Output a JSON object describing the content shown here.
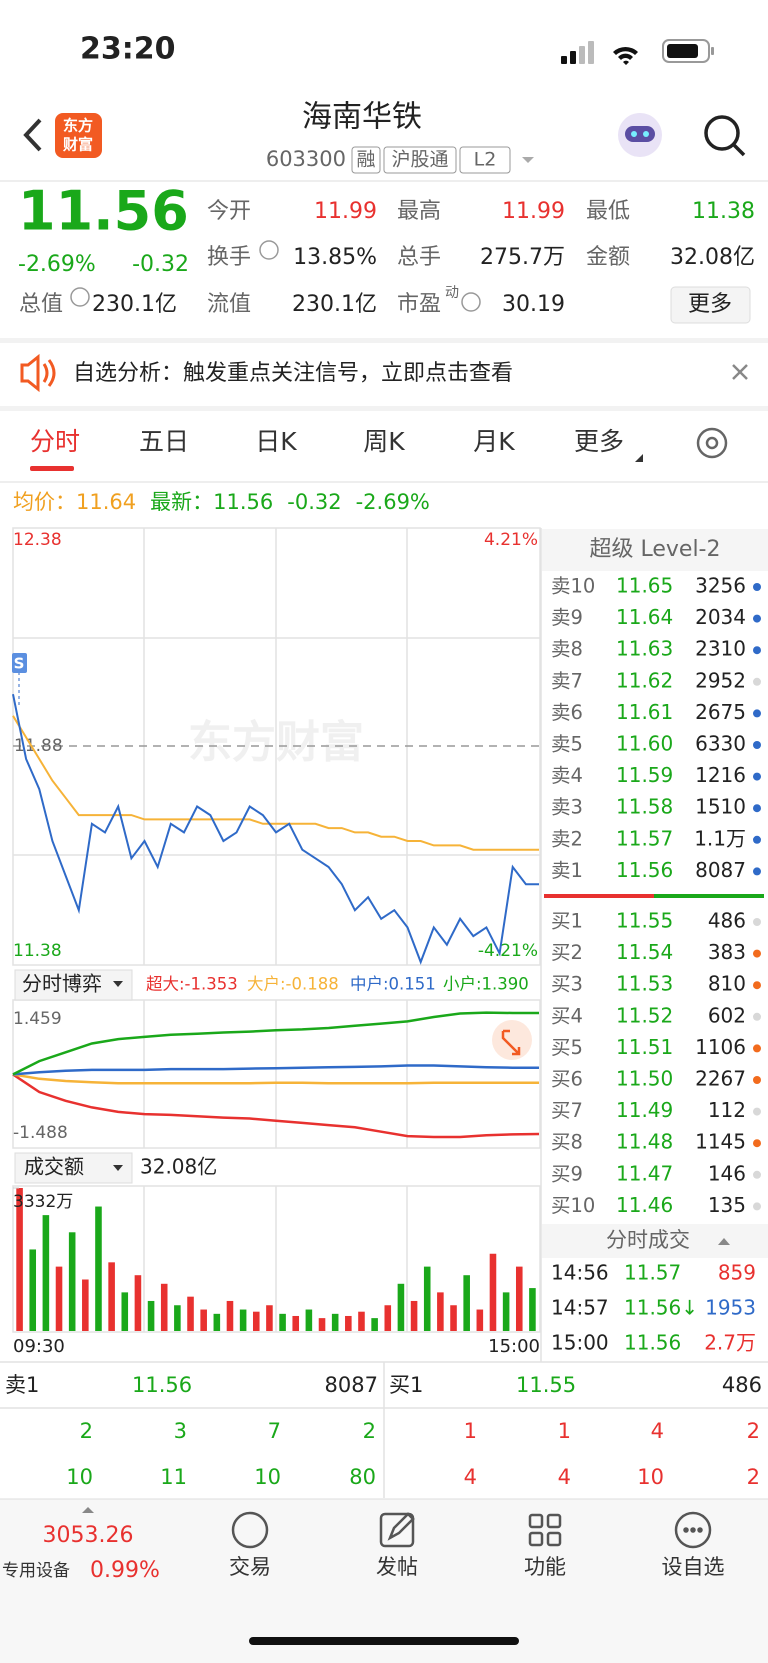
{
  "status_bar": {
    "time": "23:20"
  },
  "header": {
    "logo_lines": [
      "东方",
      "财富"
    ],
    "title": "海南华铁",
    "code": "603300",
    "tags": [
      "融",
      "沪股通",
      "L2"
    ]
  },
  "quote": {
    "price": "11.56",
    "change_pct": "-2.69%",
    "change": "-0.32",
    "stats": [
      {
        "label": "今开",
        "value": "11.99"
      },
      {
        "label": "最高",
        "value": "11.99"
      },
      {
        "label": "最低",
        "value": "11.38"
      },
      {
        "label": "换手",
        "value": "13.85%"
      },
      {
        "label": "总手",
        "value": "275.7万"
      },
      {
        "label": "金额",
        "value": "32.08亿"
      },
      {
        "label": "总值",
        "value": "230.1亿"
      },
      {
        "label": "流值",
        "value": "230.1亿"
      },
      {
        "label": "市盈",
        "label_sup": "动",
        "value": "30.19"
      }
    ],
    "more_button": "更多"
  },
  "banner": {
    "text": "自选分析：触发重点关注信号，立即点击查看"
  },
  "tabs": [
    "分时",
    "五日",
    "日K",
    "周K",
    "月K",
    "更多"
  ],
  "summary": {
    "avg_label": "均价：",
    "avg": "11.64",
    "latest_label": "最新：",
    "latest": "11.56",
    "change": "-0.32",
    "change_pct": "-2.69%"
  },
  "price_chart": {
    "ylim": [
      11.38,
      12.38
    ],
    "pct_top": "4.21%",
    "pct_bottom": "-4.21%",
    "prev_close": 11.88,
    "watermark": "东方财富",
    "marker": "S",
    "price_color": "#2f6ac8",
    "avg_color": "#f6b338",
    "price": [
      12.0,
      11.85,
      11.78,
      11.66,
      11.58,
      11.5,
      11.7,
      11.68,
      11.74,
      11.62,
      11.66,
      11.6,
      11.7,
      11.68,
      11.74,
      11.72,
      11.66,
      11.68,
      11.74,
      11.72,
      11.68,
      11.7,
      11.64,
      11.62,
      11.6,
      11.56,
      11.5,
      11.53,
      11.48,
      11.5,
      11.46,
      11.38,
      11.46,
      11.42,
      11.48,
      11.44,
      11.46,
      11.4,
      11.6,
      11.56,
      11.56
    ],
    "avg": [
      11.95,
      11.9,
      11.85,
      11.8,
      11.76,
      11.72,
      11.72,
      11.72,
      11.72,
      11.72,
      11.71,
      11.71,
      11.71,
      11.71,
      11.71,
      11.71,
      11.71,
      11.71,
      11.71,
      11.7,
      11.7,
      11.7,
      11.7,
      11.7,
      11.69,
      11.69,
      11.68,
      11.68,
      11.67,
      11.67,
      11.66,
      11.66,
      11.65,
      11.65,
      11.65,
      11.64,
      11.64,
      11.64,
      11.64,
      11.64,
      11.64
    ]
  },
  "game_chart": {
    "selector": "分时博弈",
    "ylim": [
      -1.488,
      1.459
    ],
    "series": [
      {
        "name": "超大",
        "legend": "超大:-1.353",
        "color": "#e8312f",
        "values": [
          0,
          -0.4,
          -0.6,
          -0.75,
          -0.85,
          -0.9,
          -0.92,
          -0.95,
          -0.98,
          -1.0,
          -1.05,
          -1.1,
          -1.15,
          -1.2,
          -1.3,
          -1.4,
          -1.42,
          -1.42,
          -1.38,
          -1.36,
          -1.353
        ]
      },
      {
        "name": "大户",
        "legend": "大户:-0.188",
        "color": "#f6b338",
        "values": [
          0,
          -0.1,
          -0.15,
          -0.18,
          -0.2,
          -0.2,
          -0.2,
          -0.2,
          -0.2,
          -0.2,
          -0.19,
          -0.19,
          -0.2,
          -0.2,
          -0.2,
          -0.2,
          -0.19,
          -0.19,
          -0.19,
          -0.19,
          -0.188
        ]
      },
      {
        "name": "中户",
        "legend": "中户:0.151",
        "color": "#2f6ac8",
        "values": [
          0,
          0.05,
          0.08,
          0.1,
          0.1,
          0.1,
          0.12,
          0.12,
          0.12,
          0.13,
          0.14,
          0.15,
          0.16,
          0.17,
          0.18,
          0.2,
          0.2,
          0.18,
          0.16,
          0.15,
          0.151
        ]
      },
      {
        "name": "小户",
        "legend": "小户:1.390",
        "color": "#1aa81a",
        "values": [
          0,
          0.3,
          0.5,
          0.7,
          0.8,
          0.85,
          0.9,
          0.92,
          0.95,
          0.97,
          1.0,
          1.02,
          1.05,
          1.1,
          1.15,
          1.2,
          1.3,
          1.38,
          1.4,
          1.39,
          1.39
        ]
      }
    ]
  },
  "volume_chart": {
    "selector": "成交额",
    "total": "32.08亿",
    "ylim": [
      0,
      3332
    ],
    "yticks": [
      {
        "value": 3332,
        "label": "3332万"
      }
    ],
    "xlabels": [
      "09:30",
      "15:00"
    ],
    "values": [
      3332,
      1900,
      2700,
      1500,
      2300,
      1200,
      2900,
      1600,
      900,
      1300,
      700,
      1100,
      600,
      800,
      500,
      400,
      700,
      500,
      450,
      600,
      400,
      350,
      500,
      300,
      400,
      350,
      450,
      300,
      600,
      1100,
      700,
      1500,
      900,
      600,
      1300,
      500,
      1800,
      900,
      1500,
      1000
    ],
    "colors": [
      "#e8312f",
      "#1aa81a",
      "#1aa81a",
      "#e8312f",
      "#1aa81a",
      "#e8312f",
      "#1aa81a",
      "#e8312f",
      "#1aa81a",
      "#e8312f",
      "#1aa81a",
      "#e8312f",
      "#1aa81a",
      "#e8312f",
      "#e8312f",
      "#1aa81a",
      "#e8312f",
      "#1aa81a",
      "#e8312f",
      "#e8312f",
      "#1aa81a",
      "#e8312f",
      "#1aa81a",
      "#e8312f",
      "#1aa81a",
      "#e8312f",
      "#e8312f",
      "#1aa81a",
      "#e8312f",
      "#1aa81a",
      "#e8312f",
      "#1aa81a",
      "#e8312f",
      "#e8312f",
      "#1aa81a",
      "#e8312f",
      "#e8312f",
      "#1aa81a",
      "#e8312f",
      "#1aa81a"
    ]
  },
  "order_book": {
    "title": "超级 Level-2",
    "sell": [
      {
        "label": "卖10",
        "price": "11.65",
        "volume": "3256",
        "dot": "#2f6ac8"
      },
      {
        "label": "卖9",
        "price": "11.64",
        "volume": "2034",
        "dot": "#2f6ac8"
      },
      {
        "label": "卖8",
        "price": "11.63",
        "volume": "2310",
        "dot": "#2f6ac8"
      },
      {
        "label": "卖7",
        "price": "11.62",
        "volume": "2952",
        "dot": "#d8d8d8"
      },
      {
        "label": "卖6",
        "price": "11.61",
        "volume": "2675",
        "dot": "#2f6ac8"
      },
      {
        "label": "卖5",
        "price": "11.60",
        "volume": "6330",
        "dot": "#2f6ac8"
      },
      {
        "label": "卖4",
        "price": "11.59",
        "volume": "1216",
        "dot": "#2f6ac8"
      },
      {
        "label": "卖3",
        "price": "11.58",
        "volume": "1510",
        "dot": "#2f6ac8"
      },
      {
        "label": "卖2",
        "price": "11.57",
        "volume": "1.1万",
        "dot": "#2f6ac8"
      },
      {
        "label": "卖1",
        "price": "11.56",
        "volume": "8087",
        "dot": "#2f6ac8"
      }
    ],
    "buy": [
      {
        "label": "买1",
        "price": "11.55",
        "volume": "486",
        "dot": "#d8d8d8"
      },
      {
        "label": "买2",
        "price": "11.54",
        "volume": "383",
        "dot": "#f26b1d"
      },
      {
        "label": "买3",
        "price": "11.53",
        "volume": "810",
        "dot": "#f26b1d"
      },
      {
        "label": "买4",
        "price": "11.52",
        "volume": "602",
        "dot": "#d8d8d8"
      },
      {
        "label": "买5",
        "price": "11.51",
        "volume": "1106",
        "dot": "#f26b1d"
      },
      {
        "label": "买6",
        "price": "11.50",
        "volume": "2267",
        "dot": "#f26b1d"
      },
      {
        "label": "买7",
        "price": "11.49",
        "volume": "112",
        "dot": "#d8d8d8"
      },
      {
        "label": "买8",
        "price": "11.48",
        "volume": "1145",
        "dot": "#f26b1d"
      },
      {
        "label": "买9",
        "price": "11.47",
        "volume": "146",
        "dot": "#d8d8d8"
      },
      {
        "label": "买10",
        "price": "11.46",
        "volume": "135",
        "dot": "#d8d8d8"
      }
    ]
  },
  "trades": {
    "title": "分时成交",
    "rows": [
      [
        "14:56",
        "11.57",
        "859"
      ],
      [
        "14:57",
        "11.56↓",
        "1953"
      ],
      [
        "15:00",
        "11.56",
        "2.7万"
      ]
    ]
  },
  "queue": {
    "sell_label": "卖1",
    "sell_price": "11.56",
    "sell_volume": "8087",
    "buy_label": "买1",
    "buy_price": "11.55",
    "buy_volume": "486",
    "sell_rows": [
      [
        "2",
        "3",
        "7",
        "2"
      ],
      [
        "10",
        "11",
        "10",
        "80"
      ]
    ],
    "buy_rows": [
      [
        "1",
        "1",
        "4",
        "2"
      ],
      [
        "4",
        "4",
        "10",
        "2"
      ]
    ]
  },
  "nav": {
    "index_value": "3053.26",
    "index_label": "专用设备",
    "index_change": "0.99%",
    "items": [
      "交易",
      "发帖",
      "功能",
      "设自选"
    ]
  }
}
